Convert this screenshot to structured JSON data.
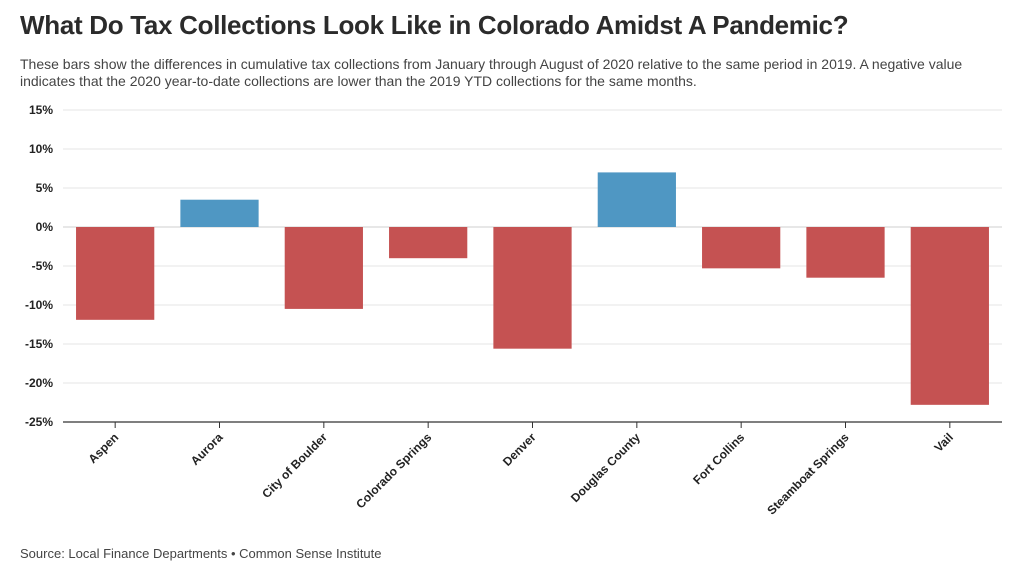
{
  "header": {
    "title": "What Do Tax Collections Look Like in Colorado Amidst A Pandemic?",
    "subtitle": "These bars show the differences in cumulative tax collections from January through August of 2020 relative to the same period in 2019. A negative value indicates that the 2020 year-to-date collections are lower than the 2019 YTD collections for the same months."
  },
  "footer": {
    "source": "Source: Local Finance Departments • Common Sense Institute"
  },
  "colors": {
    "positive": "#4f97c3",
    "negative": "#c55252",
    "grid": "#e6e6e6",
    "axis": "#333333"
  },
  "chart_data": {
    "type": "bar",
    "title": "What Do Tax Collections Look Like in Colorado Amidst A Pandemic?",
    "xlabel": "",
    "ylabel": "",
    "categories": [
      "Aspen",
      "Aurora",
      "City of Boulder",
      "Colorado Springs",
      "Denver",
      "Douglas County",
      "Fort Collins",
      "Steamboat Springs",
      "Vail"
    ],
    "values": [
      -11.9,
      3.5,
      -10.5,
      -4.0,
      -15.6,
      7.0,
      -5.3,
      -6.5,
      -22.8
    ],
    "unit": "%",
    "ylim": [
      -25,
      15
    ],
    "yticks": [
      15,
      10,
      5,
      0,
      -5,
      -10,
      -15,
      -20,
      -25
    ],
    "ytick_labels": [
      "15%",
      "10%",
      "5%",
      "0%",
      "-5%",
      "-10%",
      "-15%",
      "-20%",
      "-25%"
    ],
    "grid": true,
    "legend": "none"
  }
}
